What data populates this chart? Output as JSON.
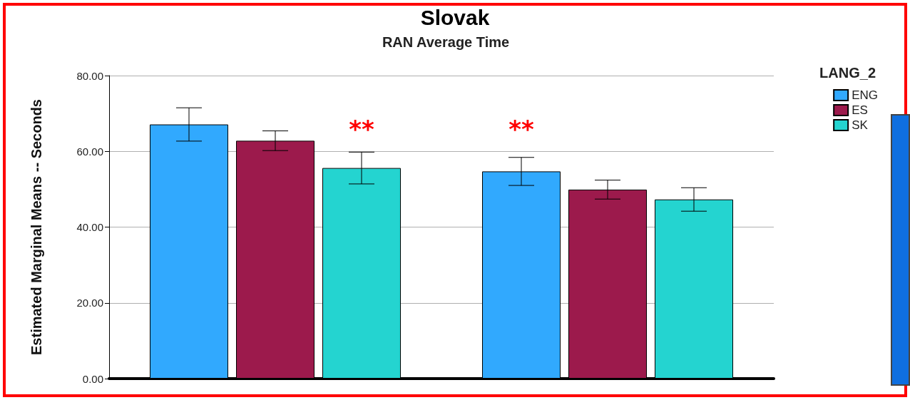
{
  "chart_data": {
    "type": "bar",
    "title": "Slovak",
    "subtitle": "RAN Average Time",
    "ylabel": "Estimated Marginal Means -- Seconds",
    "legend_title": "LANG_2",
    "categories": [
      null,
      null
    ],
    "series": [
      {
        "name": "ENG",
        "color": "#31a9fe",
        "values": [
          67.1,
          54.7
        ],
        "errors": [
          4.4,
          3.7
        ]
      },
      {
        "name": "ES",
        "color": "#9c1a4c",
        "values": [
          62.8,
          49.9
        ],
        "errors": [
          2.6,
          2.5
        ]
      },
      {
        "name": "SK",
        "color": "#24d4d0",
        "values": [
          55.6,
          47.3
        ],
        "errors": [
          4.2,
          3.1
        ]
      }
    ],
    "ylim": [
      0,
      80
    ],
    "yticks": [
      {
        "value": 0,
        "label": "0.00"
      },
      {
        "value": 20,
        "label": "20.00"
      },
      {
        "value": 40,
        "label": "40.00"
      },
      {
        "value": 60,
        "label": "60.00"
      },
      {
        "value": 80,
        "label": "80.00"
      }
    ],
    "annotations": [
      "**",
      "**"
    ],
    "grid": "y",
    "legend": "top right"
  }
}
